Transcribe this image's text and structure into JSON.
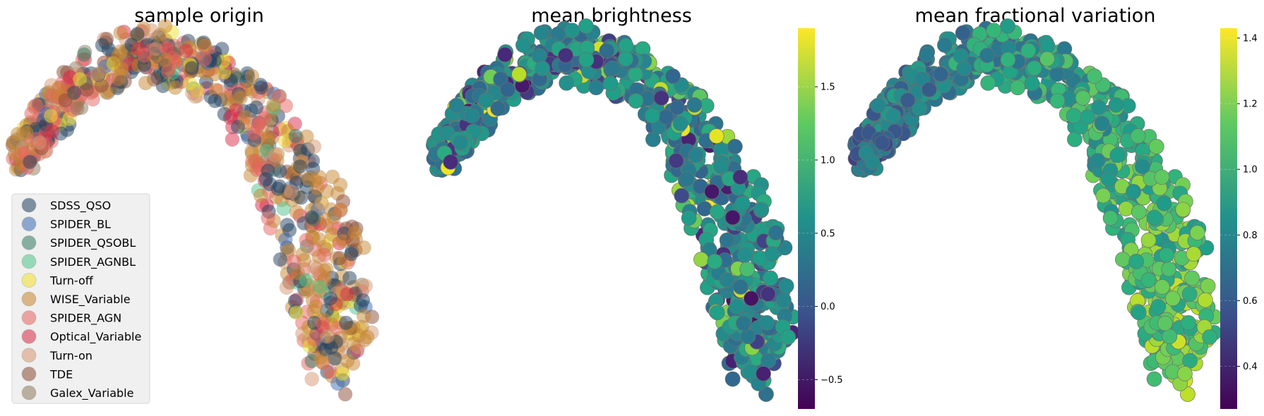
{
  "chart_data": [
    {
      "type": "scatter",
      "title": "sample origin",
      "legend_position": "lower-left",
      "grid": false,
      "axes_visible": false,
      "series": [
        {
          "name": "SDSS_QSO",
          "color": "#1f3f5f"
        },
        {
          "name": "SPIDER_BL",
          "color": "#3b6bb5"
        },
        {
          "name": "SPIDER_QSOBL",
          "color": "#2f7a62"
        },
        {
          "name": "SPIDER_AGNBL",
          "color": "#4fc48c"
        },
        {
          "name": "Turn-off",
          "color": "#f2e22a"
        },
        {
          "name": "WISE_Variable",
          "color": "#c8852e"
        },
        {
          "name": "SPIDER_AGN",
          "color": "#e8625e"
        },
        {
          "name": "Optical_Variable",
          "color": "#d92a45"
        },
        {
          "name": "Turn-on",
          "color": "#d89870"
        },
        {
          "name": "TDE",
          "color": "#8b4a34"
        },
        {
          "name": "Galex_Variable",
          "color": "#8e7a5c"
        }
      ]
    },
    {
      "type": "scatter",
      "title": "mean brightness",
      "colormap": "viridis",
      "grid": false,
      "axes_visible": false,
      "colorbar": {
        "range": [
          -0.7,
          1.9
        ],
        "ticks": [
          -0.5,
          0.0,
          0.5,
          1.0,
          1.5
        ],
        "tick_labels": [
          "−0.5",
          "0.0",
          "0.5",
          "1.0",
          "1.5"
        ]
      }
    },
    {
      "type": "scatter",
      "title": "mean fractional variation",
      "colormap": "viridis",
      "grid": false,
      "axes_visible": false,
      "colorbar": {
        "range": [
          0.27,
          1.43
        ],
        "ticks": [
          0.4,
          0.6,
          0.8,
          1.0,
          1.2,
          1.4
        ],
        "tick_labels": [
          "0.4",
          "0.6",
          "0.8",
          "1.0",
          "1.2",
          "1.4"
        ]
      }
    }
  ]
}
